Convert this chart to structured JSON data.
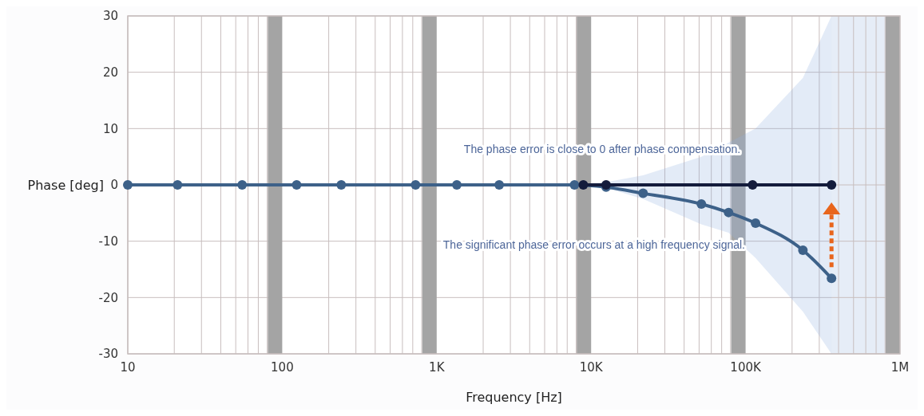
{
  "chart_data": {
    "type": "line",
    "xlabel": "Frequency [Hz]",
    "ylabel": "Phase [deg]",
    "log": "x",
    "grid": true,
    "marker": "circle",
    "line_style": "solid",
    "xlim": [
      10,
      1000000
    ],
    "ylim": [
      -30,
      30
    ],
    "xticks": [
      10,
      {
        "value": 20,
        "label": null
      },
      {
        "value": 30,
        "label": null
      },
      {
        "value": 40,
        "label": null
      },
      {
        "value": 50,
        "label": null
      },
      {
        "value": 60,
        "label": null
      },
      {
        "value": 70,
        "label": null
      },
      {
        "value": 80,
        "label": null
      },
      {
        "value": 90,
        "label": null
      },
      100,
      {
        "value": 200,
        "label": null
      },
      {
        "value": 300,
        "label": null
      },
      {
        "value": 400,
        "label": null
      },
      {
        "value": 500,
        "label": null
      },
      {
        "value": 600,
        "label": null
      },
      {
        "value": 700,
        "label": null
      },
      {
        "value": 800,
        "label": null
      },
      {
        "value": 900,
        "label": null
      },
      {
        "value": 1000,
        "label": "1K"
      },
      {
        "value": 2000,
        "label": null
      },
      {
        "value": 3000,
        "label": null
      },
      {
        "value": 4000,
        "label": null
      },
      {
        "value": 5000,
        "label": null
      },
      {
        "value": 6000,
        "label": null
      },
      {
        "value": 7000,
        "label": null
      },
      {
        "value": 8000,
        "label": null
      },
      {
        "value": 9000,
        "label": null
      },
      {
        "value": 10000,
        "label": "10K"
      },
      {
        "value": 20000,
        "label": null
      },
      {
        "value": 30000,
        "label": null
      },
      {
        "value": 40000,
        "label": null
      },
      {
        "value": 50000,
        "label": null
      },
      {
        "value": 60000,
        "label": null
      },
      {
        "value": 70000,
        "label": null
      },
      {
        "value": 80000,
        "label": null
      },
      {
        "value": 90000,
        "label": null
      },
      {
        "value": 100000,
        "label": "100K"
      },
      {
        "value": 200000,
        "label": null
      },
      {
        "value": 300000,
        "label": null
      },
      {
        "value": 400000,
        "label": null
      },
      {
        "value": 500000,
        "label": null
      },
      {
        "value": 600000,
        "label": null
      },
      {
        "value": 700000,
        "label": null
      },
      {
        "value": 800000,
        "label": null
      },
      {
        "value": 900000,
        "label": null
      },
      {
        "value": 1000000,
        "label": "1M"
      }
    ],
    "yticks": [
      -30,
      -20,
      -10,
      0,
      10,
      20,
      30
    ],
    "series": [
      {
        "color": "#3d6189",
        "x": [
          10,
          21,
          55,
          124,
          241,
          730,
          1350,
          2540,
          7800,
          12500,
          21700,
          51700,
          77600,
          116000,
          235000,
          360000
        ],
        "values": [
          0,
          0,
          0,
          0,
          0,
          0,
          0,
          0,
          0,
          -0.4,
          -1.5,
          -3.4,
          -4.9,
          -6.8,
          -11.6,
          -16.6
        ],
        "lower": [
          null,
          null,
          null,
          null,
          null,
          null,
          null,
          null,
          0,
          -0.5,
          -2.5,
          -7,
          -8.5,
          -13,
          -22.5,
          -30
        ],
        "upper": [
          null,
          null,
          null,
          null,
          null,
          null,
          null,
          null,
          0,
          0.5,
          1.7,
          5,
          7.5,
          10,
          19,
          30
        ]
      },
      {
        "color": "#141c3c",
        "x": [
          8900,
          12500,
          111000,
          360000
        ],
        "values": [
          0,
          0,
          0,
          0
        ]
      }
    ],
    "bands": [
      {
        "axis": "x",
        "from": 360000,
        "to": 1000000,
        "color": "#e6edf7"
      }
    ],
    "annotations": [
      "The phase error is close to 0 after phase compensation.",
      "The significant phase error occurs at a high frequency signal."
    ]
  }
}
